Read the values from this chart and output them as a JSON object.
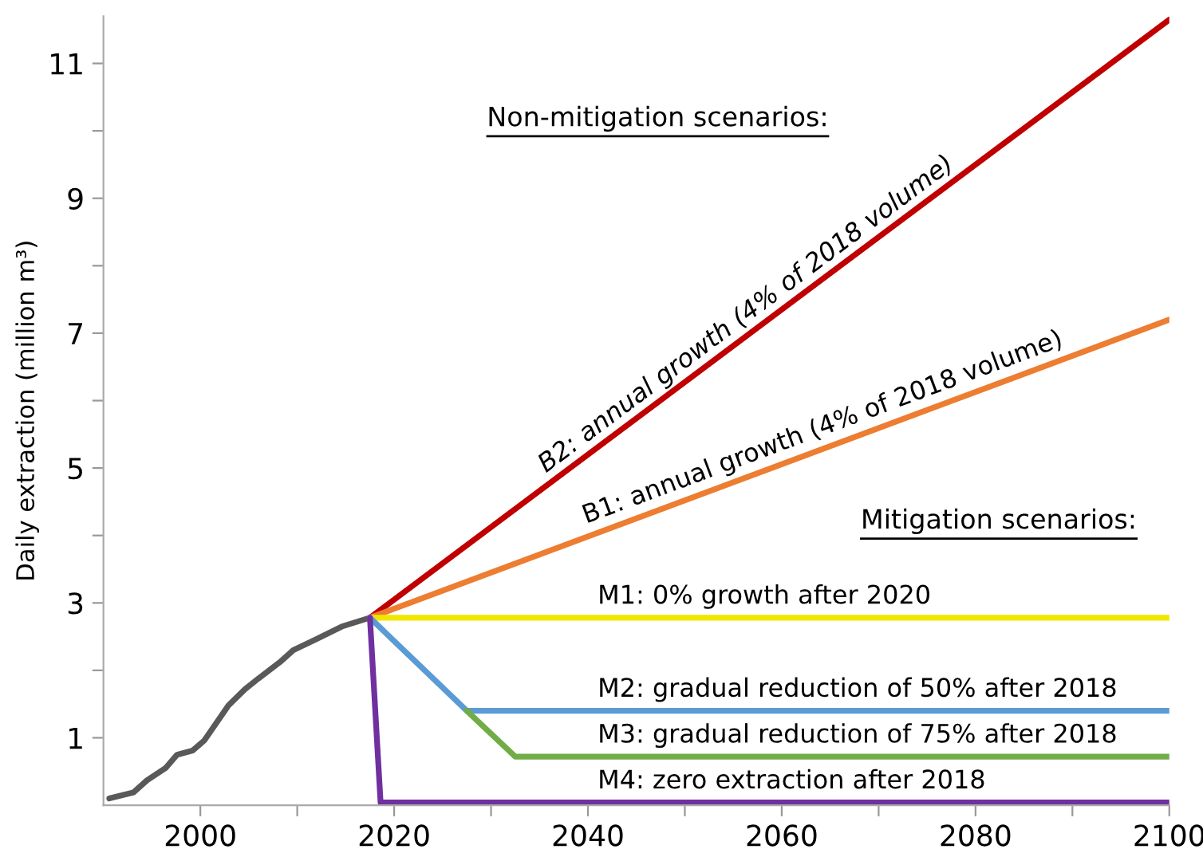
{
  "chart_data": {
    "type": "line",
    "ylabel": "Daily extraction (million m³)",
    "xlim": [
      1990,
      2100
    ],
    "ylim": [
      0,
      11.7
    ],
    "xticks": [
      2000,
      {
        "value": 2010,
        "label": null
      },
      2020,
      {
        "value": 2030,
        "label": null
      },
      2040,
      {
        "value": 2050,
        "label": null
      },
      2060,
      {
        "value": 2070,
        "label": null
      },
      2080,
      {
        "value": 2090,
        "label": null
      },
      2100
    ],
    "yticks": [
      1,
      {
        "value": 2,
        "label": null
      },
      3,
      {
        "value": 4,
        "label": null
      },
      5,
      {
        "value": 6,
        "label": null
      },
      7,
      {
        "value": 8,
        "label": null
      },
      9,
      {
        "value": 10,
        "label": null
      },
      11
    ],
    "grid": false,
    "legend": false,
    "marker": "none",
    "line_style": "solid",
    "series": [
      {
        "color": "#595959",
        "x": [
          1990.6,
          1993.1,
          1994.5,
          1996.4,
          1997.6,
          1999.2,
          2000.4,
          2002.9,
          2004.6,
          2006,
          2008.2,
          2009.6,
          2011.8,
          2014.6,
          2017.5
        ],
        "values": [
          0.1,
          0.19,
          0.37,
          0.55,
          0.75,
          0.81,
          0.96,
          1.48,
          1.72,
          1.88,
          2.12,
          2.3,
          2.45,
          2.65,
          2.78
        ]
      },
      {
        "color": "#c00000",
        "x": [
          2017.5,
          2100
        ],
        "values": [
          2.78,
          11.65
        ]
      },
      {
        "color": "#ed7d31",
        "x": [
          2017.5,
          2100
        ],
        "values": [
          2.78,
          7.2
        ]
      },
      {
        "color": "#f2e600",
        "x": [
          2017.5,
          2100
        ],
        "values": [
          2.78,
          2.78
        ]
      },
      {
        "color": "#5b9bd5",
        "x": [
          2017.5,
          2027.5,
          2100
        ],
        "values": [
          2.78,
          1.4,
          1.4
        ]
      },
      {
        "color": "#70ad47",
        "x": [
          2027.5,
          2032.5,
          2100
        ],
        "values": [
          1.4,
          0.72,
          0.72
        ]
      },
      {
        "color": "#7030a0",
        "x": [
          2017.5,
          2018.6,
          2100
        ],
        "values": [
          2.78,
          0.04,
          0.04
        ]
      }
    ],
    "annotations": [
      "Non-mitigation scenarios:",
      "Mitigation scenarios:",
      {
        "text": "B2: annual growth (4% of 2018 volume)",
        "x": 2036,
        "y": 4.73
      },
      {
        "text": "B1: annual growth (4% of 2018 volume)",
        "x": 2040,
        "y": 3.97
      },
      {
        "text": "M1: 0% growth after 2020",
        "x": 2041,
        "y": 2.78
      },
      {
        "text": "M2: gradual reduction of 50% after 2018",
        "x": 2041,
        "y": 1.4
      },
      {
        "text": "M3: gradual reduction of 75% after 2018",
        "x": 2041,
        "y": 0.72
      },
      {
        "text": "M4: zero extraction after 2018",
        "x": 2041,
        "y": 0.04
      }
    ]
  }
}
